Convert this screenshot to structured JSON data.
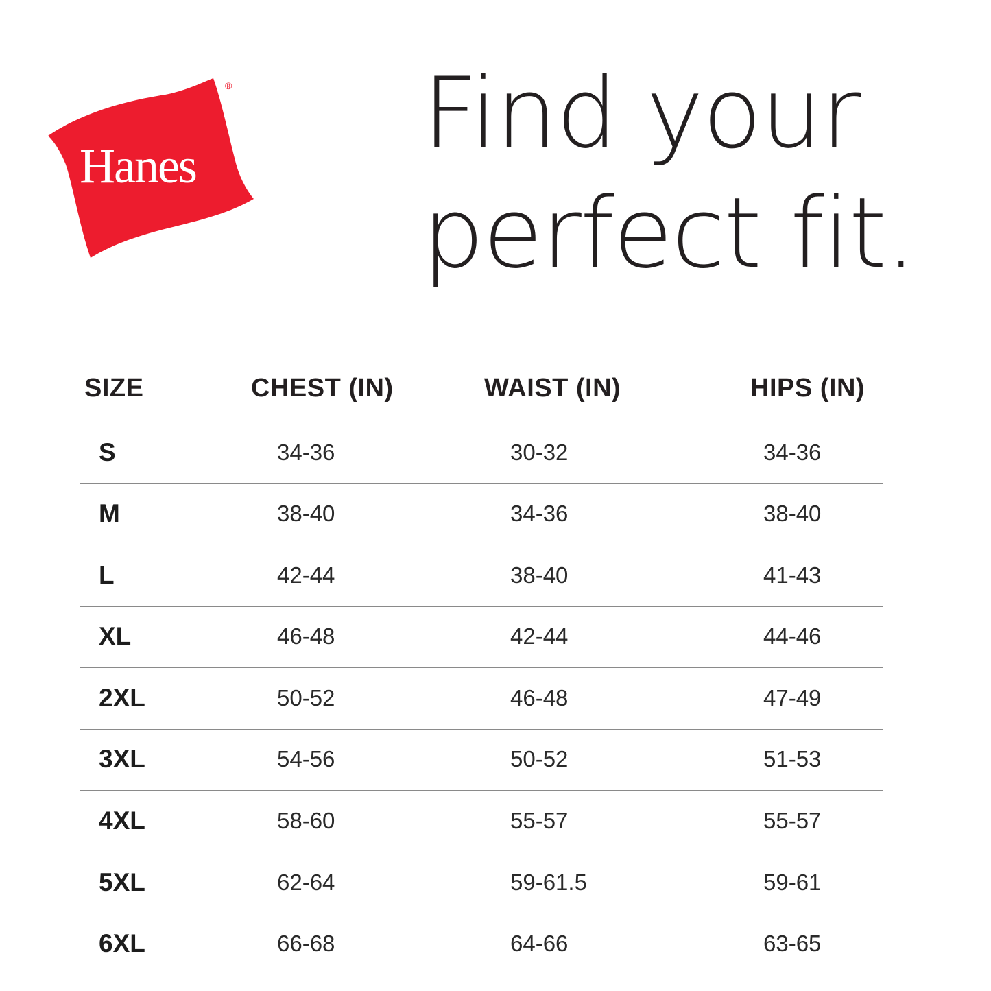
{
  "brand": {
    "name": "Hanes",
    "registered_mark": "®",
    "color": "#ed1c2e"
  },
  "title": {
    "line1": "Find your",
    "line2": "perfect fit."
  },
  "table": {
    "headers": [
      "SIZE",
      "CHEST (IN)",
      "WAIST (IN)",
      "HIPS (IN)"
    ],
    "rows": [
      {
        "size": "S",
        "chest": "34-36",
        "waist": "30-32",
        "hips": "34-36"
      },
      {
        "size": "M",
        "chest": "38-40",
        "waist": "34-36",
        "hips": "38-40"
      },
      {
        "size": "L",
        "chest": "42-44",
        "waist": "38-40",
        "hips": "41-43"
      },
      {
        "size": "XL",
        "chest": "46-48",
        "waist": "42-44",
        "hips": "44-46"
      },
      {
        "size": "2XL",
        "chest": "50-52",
        "waist": "46-48",
        "hips": "47-49"
      },
      {
        "size": "3XL",
        "chest": "54-56",
        "waist": "50-52",
        "hips": "51-53"
      },
      {
        "size": "4XL",
        "chest": "58-60",
        "waist": "55-57",
        "hips": "55-57"
      },
      {
        "size": "5XL",
        "chest": "62-64",
        "waist": "59-61.5",
        "hips": "59-61"
      },
      {
        "size": "6XL",
        "chest": "66-68",
        "waist": "64-66",
        "hips": "63-65"
      }
    ]
  }
}
